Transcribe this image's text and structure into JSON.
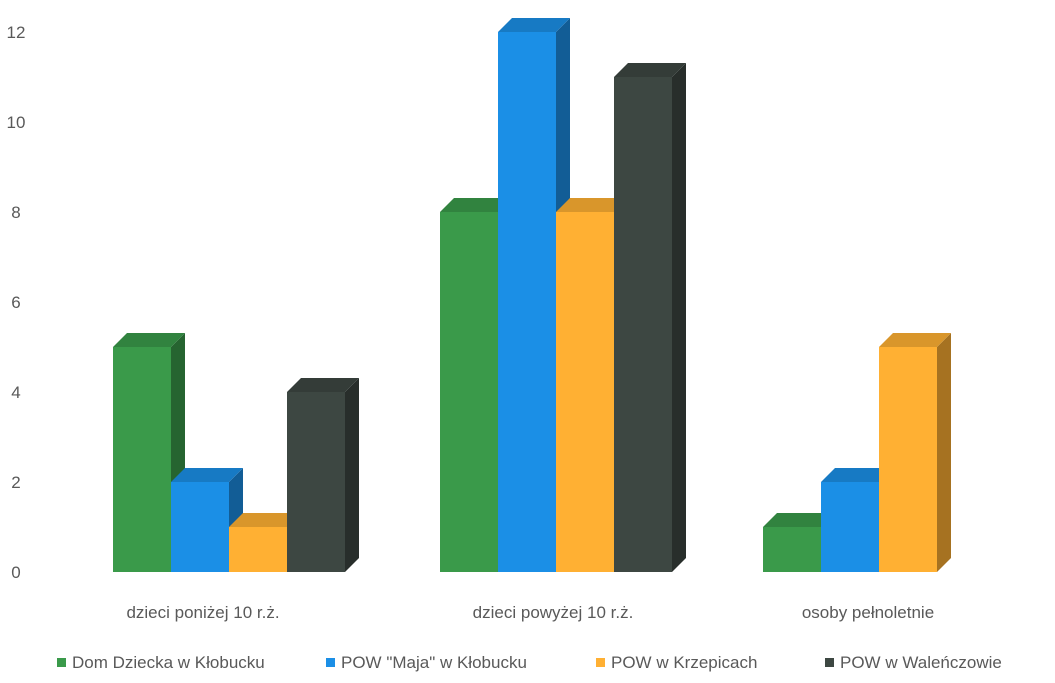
{
  "chart_data": {
    "type": "bar",
    "style": "3d-clustered-column",
    "title": "",
    "xlabel": "",
    "ylabel": "",
    "categories": [
      "dzieci poniżej 10 r.ż.",
      "dzieci powyżej 10 r.ż.",
      "osoby pełnoletnie"
    ],
    "series": [
      {
        "name": "Dom Dziecka w Kłobucku",
        "color": "#3a9a4a",
        "values": [
          5,
          8,
          1
        ]
      },
      {
        "name": "POW \"Maja\" w Kłobucku",
        "color": "#1b8fe6",
        "values": [
          2,
          12,
          2
        ]
      },
      {
        "name": "POW w Krzepicach",
        "color": "#ffb033",
        "values": [
          1,
          8,
          5
        ]
      },
      {
        "name": "POW w Walеńczowie",
        "color": "#3d4742",
        "values": [
          4,
          11,
          0
        ]
      }
    ],
    "ylim": [
      0,
      12
    ],
    "yticks": [
      "0",
      "2",
      "4",
      "6",
      "8",
      "10",
      "12"
    ],
    "grid": false,
    "legend": "bottom"
  }
}
